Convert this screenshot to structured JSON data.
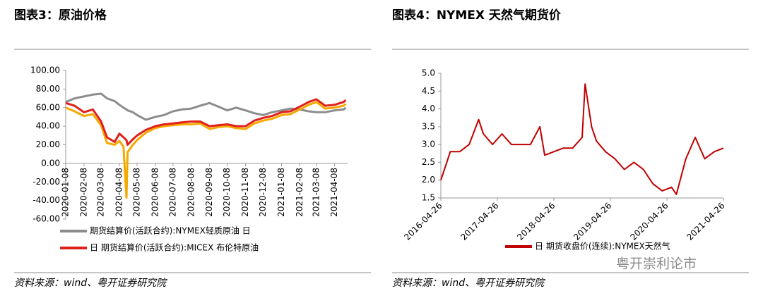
{
  "chart_data": [
    {
      "type": "line",
      "title": "图表3：原油价格",
      "source": "资料来源：wind、粤开证券研究院",
      "x": [
        "2020-01-08",
        "2020-01-23",
        "2020-02-08",
        "2020-02-23",
        "2020-03-08",
        "2020-03-18",
        "2020-03-31",
        "2020-04-08",
        "2020-04-15",
        "2020-04-20",
        "2020-04-22",
        "2020-05-01",
        "2020-05-08",
        "2020-05-23",
        "2020-06-08",
        "2020-06-23",
        "2020-07-08",
        "2020-07-23",
        "2020-08-08",
        "2020-08-23",
        "2020-09-08",
        "2020-09-23",
        "2020-10-08",
        "2020-10-23",
        "2020-11-08",
        "2020-11-23",
        "2020-12-08",
        "2020-12-23",
        "2021-01-08",
        "2021-01-23",
        "2021-02-08",
        "2021-02-23",
        "2021-03-08",
        "2021-03-23",
        "2021-04-08",
        "2021-04-23",
        "2021-04-27"
      ],
      "series": [
        {
          "name": "期货结算价(活跃合约):NYMEX轻质原油 日",
          "color": "#8c8c8c",
          "values": [
            66,
            70,
            72,
            74,
            75,
            70,
            67,
            63,
            60,
            58,
            57,
            55,
            52,
            47,
            50,
            52,
            56,
            58,
            59,
            62,
            65,
            61,
            57,
            60,
            57,
            54,
            52,
            55,
            57,
            59,
            58,
            56,
            55,
            55,
            57,
            58,
            60
          ]
        },
        {
          "color": "#f5a800",
          "values": [
            60,
            56,
            51,
            53,
            41,
            22,
            20,
            24,
            18,
            -37,
            12,
            20,
            25,
            33,
            38,
            40,
            41,
            42,
            42,
            43,
            37,
            39,
            40,
            38,
            37,
            43,
            46,
            48,
            52,
            53,
            58,
            63,
            66,
            59,
            60,
            62,
            64
          ]
        },
        {
          "name": "日 期货结算价(活跃合约):MICEX 布伦特原油",
          "color": "#e0201a",
          "values": [
            65,
            62,
            55,
            58,
            45,
            28,
            23,
            32,
            28,
            25,
            20,
            26,
            30,
            36,
            40,
            42,
            43,
            44,
            45,
            45,
            40,
            41,
            42,
            40,
            40,
            46,
            49,
            51,
            55,
            56,
            61,
            66,
            69,
            62,
            63,
            66,
            68
          ]
        }
      ],
      "xlim": [
        "2020-01-08",
        "2021-04-30"
      ],
      "xticks": [
        "2020-01-08",
        "2020-02-08",
        "2020-03-08",
        "2020-04-08",
        "2020-05-08",
        "2020-06-08",
        "2020-07-08",
        "2020-08-08",
        "2020-09-08",
        "2020-10-08",
        "2020-11-08",
        "2020-12-08",
        "2021-01-08",
        "2021-02-08",
        "2021-03-08",
        "2021-04-08"
      ],
      "ylim": [
        -60,
        100
      ],
      "yticks": [
        {
          "value": 100,
          "label": "100.00"
        },
        {
          "value": 80,
          "label": "80.00"
        },
        {
          "value": 60,
          "label": "60.00"
        },
        {
          "value": 40,
          "label": "40.00"
        },
        {
          "value": 20,
          "label": "20.00"
        },
        {
          "value": 0,
          "label": "0.00"
        },
        {
          "value": -20,
          "label": "-20.00"
        },
        {
          "value": -40,
          "label": "-40.00"
        },
        {
          "value": -60,
          "label": "-60.00"
        }
      ]
    },
    {
      "type": "line",
      "title": "图表4：NYMEX 天然气期货价",
      "source": "资料来源：wind、粤开证券研究院",
      "x": [
        "2016-04-26",
        "2016-06-26",
        "2016-08-26",
        "2016-10-26",
        "2016-12-26",
        "2017-01-26",
        "2017-03-26",
        "2017-05-26",
        "2017-07-26",
        "2017-09-26",
        "2017-11-26",
        "2018-01-26",
        "2018-02-26",
        "2018-04-26",
        "2018-06-26",
        "2018-08-26",
        "2018-10-26",
        "2018-11-14",
        "2018-12-26",
        "2019-01-26",
        "2019-03-26",
        "2019-05-26",
        "2019-07-26",
        "2019-09-26",
        "2019-11-26",
        "2020-01-26",
        "2020-03-26",
        "2020-05-26",
        "2020-06-26",
        "2020-08-26",
        "2020-10-26",
        "2020-12-26",
        "2021-01-26",
        "2021-02-26",
        "2021-04-26"
      ],
      "series": [
        {
          "name": "日 期货收盘价(连续):NYMEX天然气",
          "color": "#c00000",
          "values": [
            2.0,
            2.8,
            2.8,
            3.0,
            3.7,
            3.3,
            3.0,
            3.3,
            3.0,
            3.0,
            3.0,
            3.5,
            2.7,
            2.8,
            2.9,
            2.9,
            3.2,
            4.7,
            3.5,
            3.1,
            2.8,
            2.6,
            2.3,
            2.5,
            2.3,
            1.9,
            1.7,
            1.8,
            1.6,
            2.6,
            3.2,
            2.6,
            2.7,
            2.8,
            2.9
          ]
        }
      ],
      "xlim": [
        "2016-04-26",
        "2021-04-26"
      ],
      "xticks": [
        "2016-04-26",
        "2017-04-26",
        "2018-04-26",
        "2019-04-26",
        "2020-04-26",
        "2021-04-26"
      ],
      "ylim": [
        1.5,
        5.0
      ],
      "yticks": [
        {
          "value": 1.5,
          "label": "1.5"
        },
        {
          "value": 2.0,
          "label": "2.0"
        },
        {
          "value": 2.5,
          "label": "2.5"
        },
        {
          "value": 3.0,
          "label": "3.0"
        },
        {
          "value": 3.5,
          "label": "3.5"
        },
        {
          "value": 4.0,
          "label": "4.0"
        },
        {
          "value": 4.5,
          "label": "4.5"
        },
        {
          "value": 5.0,
          "label": "5.0"
        }
      ]
    }
  ],
  "watermark": "粤开崇利论市"
}
